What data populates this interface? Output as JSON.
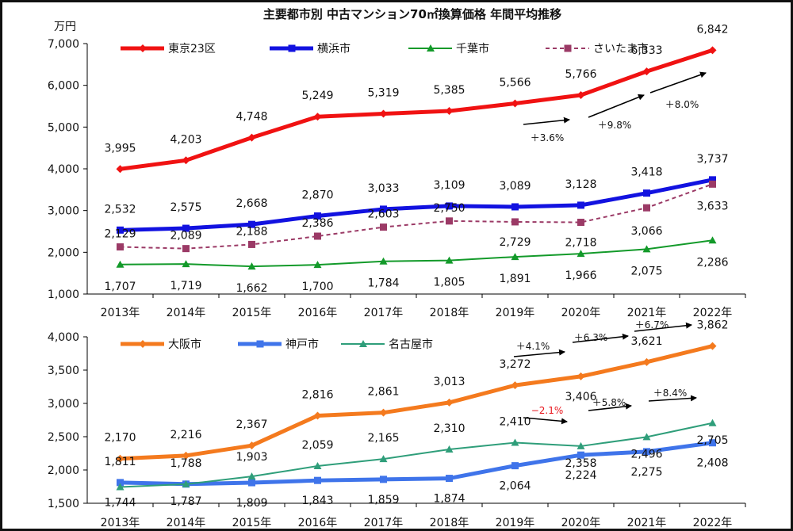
{
  "title": "主要都市別 中古マンション70㎡換算価格 年間平均推移",
  "unit_label": "万円",
  "chart_data": [
    {
      "type": "line",
      "categories": [
        "2013年",
        "2014年",
        "2015年",
        "2016年",
        "2017年",
        "2018年",
        "2019年",
        "2020年",
        "2021年",
        "2022年"
      ],
      "ylim": [
        1000,
        7000
      ],
      "yticks": [
        "1,000",
        "2,000",
        "3,000",
        "4,000",
        "5,000",
        "6,000",
        "7,000"
      ],
      "ytick_values": [
        1000,
        2000,
        3000,
        4000,
        5000,
        6000,
        7000
      ],
      "grid": false,
      "legend": "top",
      "series": [
        {
          "name": "東京23区",
          "color": "#f01212",
          "style": "thick",
          "marker": "diamond",
          "values": [
            3995,
            4203,
            4748,
            5249,
            5319,
            5385,
            5566,
            5766,
            6333,
            6842
          ],
          "labels": [
            "3,995",
            "4,203",
            "4,748",
            "5,249",
            "5,319",
            "5,385",
            "5,566",
            "5,766",
            "6,333",
            "6,842"
          ]
        },
        {
          "name": "横浜市",
          "color": "#1212e0",
          "style": "thick",
          "marker": "square",
          "values": [
            2532,
            2575,
            2668,
            2870,
            3033,
            3109,
            3089,
            3128,
            3418,
            3737
          ],
          "labels": [
            "2,532",
            "2,575",
            "2,668",
            "2,870",
            "3,033",
            "3,109",
            "3,089",
            "3,128",
            "3,418",
            "3,737"
          ]
        },
        {
          "name": "千葉市",
          "color": "#139a2a",
          "style": "thin",
          "marker": "triangle",
          "values": [
            1707,
            1719,
            1662,
            1700,
            1784,
            1805,
            1891,
            1966,
            2075,
            2286
          ],
          "labels": [
            "1,707",
            "1,719",
            "1,662",
            "1,700",
            "1,784",
            "1,805",
            "1,891",
            "1,966",
            "2,075",
            "2,286"
          ]
        },
        {
          "name": "さいたま市",
          "color": "#9b3a66",
          "style": "dashed",
          "marker": "square",
          "values": [
            2129,
            2089,
            2188,
            2386,
            2603,
            2750,
            2729,
            2718,
            3066,
            3633
          ],
          "labels": [
            "2,129",
            "2,089",
            "2,188",
            "2,386",
            "2,603",
            "2,750",
            "2,729",
            "2,718",
            "3,066",
            "3,633"
          ]
        }
      ],
      "annotations": [
        "＋3.6%",
        "＋9.8%",
        "＋8.0%"
      ]
    },
    {
      "type": "line",
      "categories": [
        "2013年",
        "2014年",
        "2015年",
        "2016年",
        "2017年",
        "2018年",
        "2019年",
        "2020年",
        "2021年",
        "2022年"
      ],
      "ylim": [
        1500,
        4000
      ],
      "yticks": [
        "1,500",
        "2,000",
        "2,500",
        "3,000",
        "3,500",
        "4,000"
      ],
      "ytick_values": [
        1500,
        2000,
        2500,
        3000,
        3500,
        4000
      ],
      "grid": false,
      "legend": "top",
      "series": [
        {
          "name": "大阪市",
          "color": "#f47a1e",
          "style": "thick",
          "marker": "diamond",
          "values": [
            2170,
            2216,
            2367,
            2816,
            2861,
            3013,
            3272,
            3406,
            3621,
            3862
          ],
          "labels": [
            "2,170",
            "2,216",
            "2,367",
            "2,816",
            "2,861",
            "3,013",
            "3,272",
            "3,406",
            "3,621",
            "3,862"
          ]
        },
        {
          "name": "神戸市",
          "color": "#3f74ea",
          "style": "thick",
          "marker": "square",
          "values": [
            1811,
            1788,
            1809,
            1843,
            1859,
            1874,
            2064,
            2224,
            2275,
            2408
          ],
          "labels": [
            "1,811",
            "1,788",
            "1,809",
            "1,843",
            "1,859",
            "1,874",
            "2,064",
            "2,224",
            "2,275",
            "2,408"
          ]
        },
        {
          "name": "名古屋市",
          "color": "#2f9e7a",
          "style": "thin",
          "marker": "triangle",
          "values": [
            1744,
            1787,
            1903,
            2059,
            2165,
            2310,
            2410,
            2358,
            2496,
            2705
          ],
          "labels": [
            "1,744",
            "1,787",
            "1,903",
            "2,059",
            "2,165",
            "2,310",
            "2,410",
            "2,358",
            "2,496",
            "2,705"
          ]
        }
      ],
      "annotations": [
        "＋4.1%",
        "＋6.3%",
        "＋6.7%",
        "−2.1%",
        "＋5.8%",
        "＋8.4%"
      ]
    }
  ]
}
